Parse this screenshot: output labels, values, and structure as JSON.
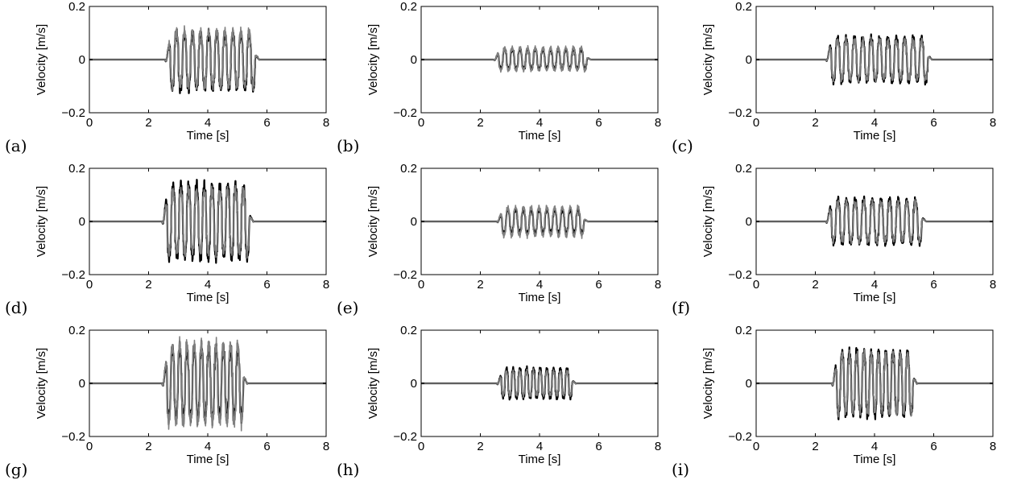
{
  "chart_data": [
    {
      "panel": "(a)",
      "type": "line",
      "xlabel": "Time [s]",
      "ylabel": "Velocity [m/s]",
      "xlim": [
        0,
        8
      ],
      "ylim": [
        -0.2,
        0.2
      ],
      "x_ticks": [
        "0",
        "2",
        "4",
        "6",
        "8"
      ],
      "y_ticks": [
        "0.2",
        "0",
        "−0.2"
      ],
      "grid": false,
      "series": [
        {
          "color": "#000000",
          "start": 2.6,
          "end": 5.6,
          "cycles": 11,
          "peak_pos": 0.11,
          "peak_neg": -0.12
        },
        {
          "color": "#808080",
          "start": 2.6,
          "end": 5.6,
          "cycles": 11,
          "peak_pos": 0.12,
          "peak_neg": -0.11
        }
      ]
    },
    {
      "panel": "(b)",
      "type": "line",
      "xlabel": "Time [s]",
      "ylabel": "Velocity [m/s]",
      "xlim": [
        0,
        8
      ],
      "ylim": [
        -0.2,
        0.2
      ],
      "x_ticks": [
        "0",
        "2",
        "4",
        "6",
        "8"
      ],
      "y_ticks": [
        "0.2",
        "0",
        "−0.2"
      ],
      "grid": false,
      "series": [
        {
          "color": "#000000",
          "start": 2.5,
          "end": 5.6,
          "cycles": 12,
          "peak_pos": 0.045,
          "peak_neg": -0.04
        },
        {
          "color": "#808080",
          "start": 2.5,
          "end": 5.6,
          "cycles": 12,
          "peak_pos": 0.05,
          "peak_neg": -0.045
        }
      ]
    },
    {
      "panel": "(c)",
      "type": "line",
      "xlabel": "Time [s]",
      "ylabel": "Velocity [m/s]",
      "xlim": [
        0,
        8
      ],
      "ylim": [
        -0.2,
        0.2
      ],
      "x_ticks": [
        "0",
        "2",
        "4",
        "6",
        "8"
      ],
      "y_ticks": [
        "0.2",
        "0",
        "−0.2"
      ],
      "grid": false,
      "series": [
        {
          "color": "#000000",
          "start": 2.4,
          "end": 5.8,
          "cycles": 12,
          "peak_pos": 0.09,
          "peak_neg": -0.09
        },
        {
          "color": "#808080",
          "start": 2.4,
          "end": 5.8,
          "cycles": 12,
          "peak_pos": 0.08,
          "peak_neg": -0.08
        }
      ]
    },
    {
      "panel": "(d)",
      "type": "line",
      "xlabel": "Time [s]",
      "ylabel": "Velocity [m/s]",
      "xlim": [
        0,
        8
      ],
      "ylim": [
        -0.2,
        0.2
      ],
      "x_ticks": [
        "0",
        "2",
        "4",
        "6",
        "8"
      ],
      "y_ticks": [
        "0.2",
        "0",
        "−0.2"
      ],
      "grid": false,
      "series": [
        {
          "color": "#000000",
          "start": 2.5,
          "end": 5.4,
          "cycles": 11,
          "peak_pos": 0.15,
          "peak_neg": -0.15
        },
        {
          "color": "#808080",
          "start": 2.5,
          "end": 5.4,
          "cycles": 11,
          "peak_pos": 0.13,
          "peak_neg": -0.13
        }
      ]
    },
    {
      "panel": "(e)",
      "type": "line",
      "xlabel": "Time [s]",
      "ylabel": "Velocity [m/s]",
      "xlim": [
        0,
        8
      ],
      "ylim": [
        -0.2,
        0.2
      ],
      "x_ticks": [
        "0",
        "2",
        "4",
        "6",
        "8"
      ],
      "y_ticks": [
        "0.2",
        "0",
        "−0.2"
      ],
      "grid": false,
      "series": [
        {
          "color": "#000000",
          "start": 2.6,
          "end": 5.5,
          "cycles": 11,
          "peak_pos": 0.05,
          "peak_neg": -0.05
        },
        {
          "color": "#808080",
          "start": 2.6,
          "end": 5.5,
          "cycles": 11,
          "peak_pos": 0.06,
          "peak_neg": -0.06
        }
      ]
    },
    {
      "panel": "(f)",
      "type": "line",
      "xlabel": "Time [s]",
      "ylabel": "Velocity [m/s]",
      "xlim": [
        0,
        8
      ],
      "ylim": [
        -0.2,
        0.2
      ],
      "x_ticks": [
        "0",
        "2",
        "4",
        "6",
        "8"
      ],
      "y_ticks": [
        "0.2",
        "0",
        "−0.2"
      ],
      "grid": false,
      "series": [
        {
          "color": "#000000",
          "start": 2.4,
          "end": 5.6,
          "cycles": 11,
          "peak_pos": 0.09,
          "peak_neg": -0.09
        },
        {
          "color": "#808080",
          "start": 2.4,
          "end": 5.6,
          "cycles": 11,
          "peak_pos": 0.08,
          "peak_neg": -0.08
        }
      ]
    },
    {
      "panel": "(g)",
      "type": "line",
      "xlabel": "Time [s]",
      "ylabel": "Velocity [m/s]",
      "xlim": [
        0,
        8
      ],
      "ylim": [
        -0.2,
        0.2
      ],
      "x_ticks": [
        "0",
        "2",
        "4",
        "6",
        "8"
      ],
      "y_ticks": [
        "0.2",
        "0",
        "−0.2"
      ],
      "grid": false,
      "series": [
        {
          "color": "#000000",
          "start": 2.5,
          "end": 5.2,
          "cycles": 11,
          "peak_pos": 0.15,
          "peak_neg": -0.15
        },
        {
          "color": "#808080",
          "start": 2.5,
          "end": 5.2,
          "cycles": 11,
          "peak_pos": 0.165,
          "peak_neg": -0.165
        }
      ]
    },
    {
      "panel": "(h)",
      "type": "line",
      "xlabel": "Time [s]",
      "ylabel": "Velocity [m/s]",
      "xlim": [
        0,
        8
      ],
      "ylim": [
        -0.2,
        0.2
      ],
      "x_ticks": [
        "0",
        "2",
        "4",
        "6",
        "8"
      ],
      "y_ticks": [
        "0.2",
        "0",
        "−0.2"
      ],
      "grid": false,
      "series": [
        {
          "color": "#000000",
          "start": 2.6,
          "end": 5.1,
          "cycles": 11,
          "peak_pos": 0.06,
          "peak_neg": -0.06
        },
        {
          "color": "#808080",
          "start": 2.6,
          "end": 5.1,
          "cycles": 11,
          "peak_pos": 0.05,
          "peak_neg": -0.05
        }
      ]
    },
    {
      "panel": "(i)",
      "type": "line",
      "xlabel": "Time [s]",
      "ylabel": "Velocity [m/s]",
      "xlim": [
        0,
        8
      ],
      "ylim": [
        -0.2,
        0.2
      ],
      "x_ticks": [
        "0",
        "2",
        "4",
        "6",
        "8"
      ],
      "y_ticks": [
        "0.2",
        "0",
        "−0.2"
      ],
      "grid": false,
      "series": [
        {
          "color": "#000000",
          "start": 2.6,
          "end": 5.3,
          "cycles": 11,
          "peak_pos": 0.13,
          "peak_neg": -0.13
        },
        {
          "color": "#808080",
          "start": 2.6,
          "end": 5.3,
          "cycles": 11,
          "peak_pos": 0.12,
          "peak_neg": -0.12
        }
      ]
    }
  ]
}
